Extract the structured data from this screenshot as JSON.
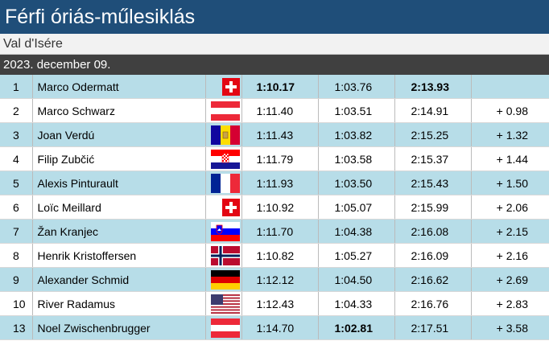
{
  "header": {
    "title": "Férfi óriás-műlesiklás",
    "location": "Val d'Isére",
    "date": "2023. december 09."
  },
  "table": {
    "rows": [
      {
        "rank": 1,
        "name": "Marco Odermatt",
        "run1": "1:10.17",
        "run2": "1:03.76",
        "total": "2:13.93"
      },
      {
        "rank": 2,
        "name": "Marco Schwarz",
        "run1": "1:11.40",
        "run2": "1:03.51",
        "total": "2:14.91",
        "diff": "+ 0.98"
      },
      {
        "rank": 3,
        "name": "Joan Verdú",
        "run1": "1:11.43",
        "run2": "1:03.82",
        "total": "2:15.25",
        "diff": "+ 1.32"
      },
      {
        "rank": 4,
        "name": "Filip Zubčić",
        "run1": "1:11.79",
        "run2": "1:03.58",
        "total": "2:15.37",
        "diff": "+ 1.44"
      },
      {
        "rank": 5,
        "name": "Alexis Pinturault",
        "run1": "1:11.93",
        "run2": "1:03.50",
        "total": "2:15.43",
        "diff": "+ 1.50"
      },
      {
        "rank": 6,
        "name": "Loïc Meillard",
        "run1": "1:10.92",
        "run2": "1:05.07",
        "total": "2:15.99",
        "diff": "+ 2.06"
      },
      {
        "rank": 7,
        "name": "Žan Kranjec",
        "run1": "1:11.70",
        "run2": "1:04.38",
        "total": "2:16.08",
        "diff": "+ 2.15"
      },
      {
        "rank": 8,
        "name": "Henrik Kristoffersen",
        "run1": "1:10.82",
        "run2": "1:05.27",
        "total": "2:16.09",
        "diff": "+ 2.16"
      },
      {
        "rank": 9,
        "name": "Alexander Schmid",
        "run1": "1:12.12",
        "run2": "1:04.50",
        "total": "2:16.62",
        "diff": "+ 2.69"
      },
      {
        "rank": 10,
        "name": "River Radamus",
        "run1": "1:12.43",
        "run2": "1:04.33",
        "total": "2:16.76",
        "diff": "+ 2.83"
      },
      {
        "rank": 13,
        "name": "Noel Zwischenbrugger",
        "run1": "1:14.70",
        "run2": "1:02.81",
        "total": "2:17.51",
        "diff": "+ 3.58"
      }
    ]
  }
}
